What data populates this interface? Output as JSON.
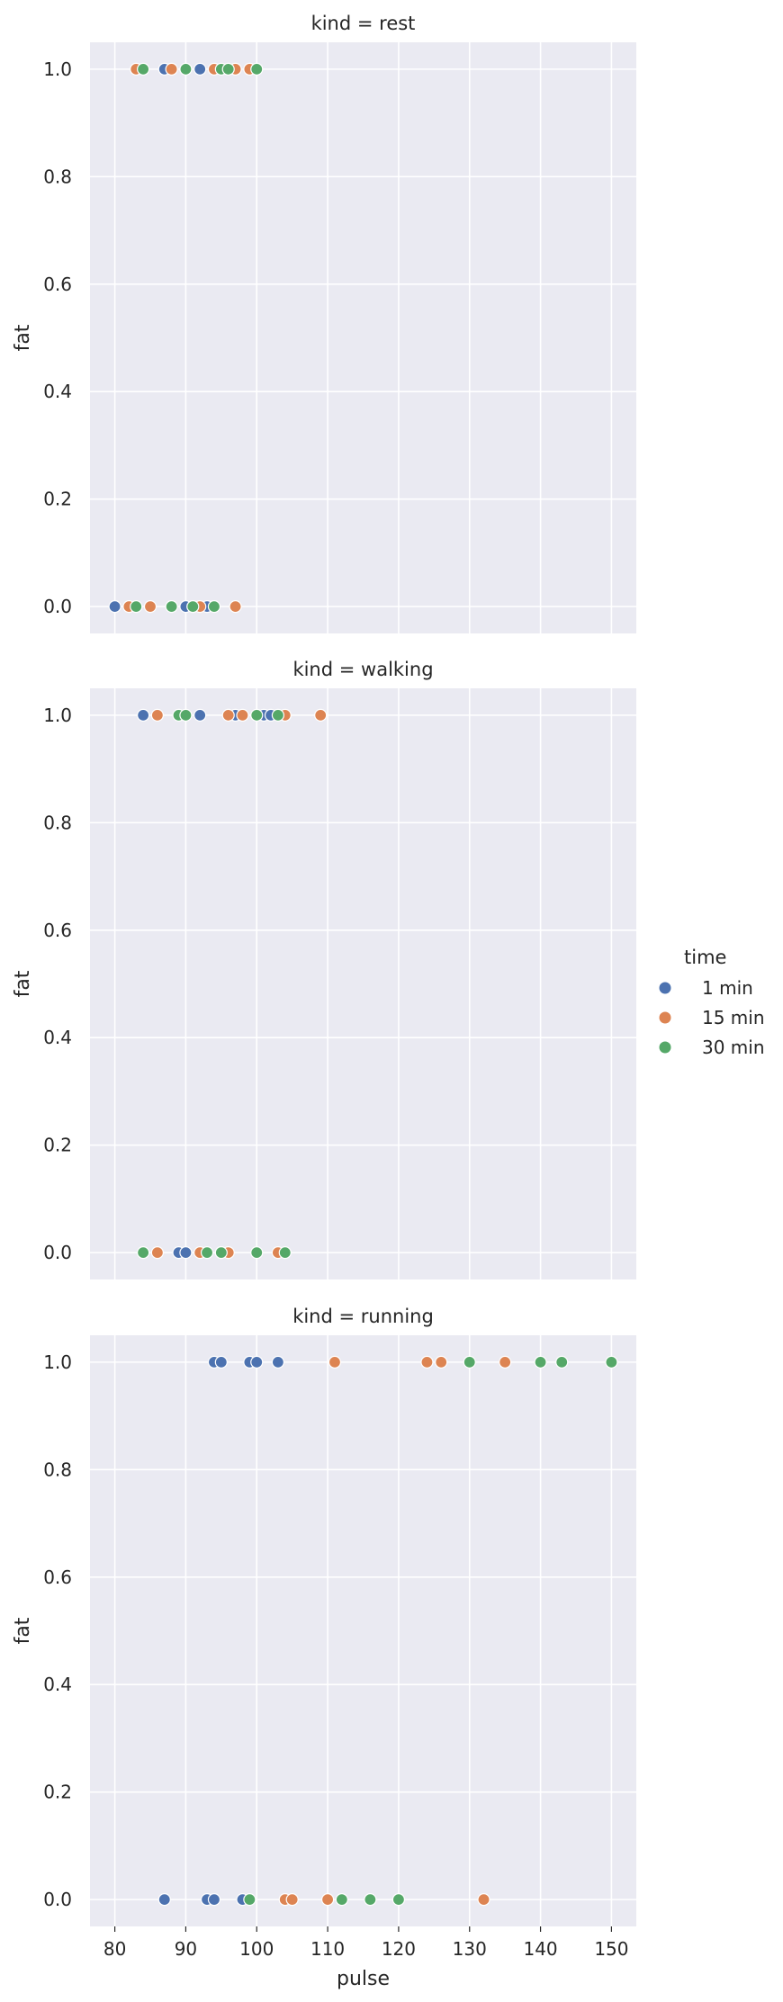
{
  "chart_data": {
    "type": "scatter",
    "x_label": "pulse",
    "y_label": "fat",
    "x_ticks": [
      80,
      90,
      100,
      110,
      120,
      130,
      140,
      150
    ],
    "y_ticks": [
      0.0,
      0.2,
      0.4,
      0.6,
      0.8,
      1.0
    ],
    "y_tick_labels": [
      "0.0",
      "0.2",
      "0.4",
      "0.6",
      "0.8",
      "1.0"
    ],
    "xlim": [
      76.5,
      153.5
    ],
    "ylim": [
      -0.05,
      1.05
    ],
    "legend": {
      "title": "time",
      "position": "right",
      "entries": [
        {
          "label": "1 min",
          "color": "#4c72b0"
        },
        {
          "label": "15 min",
          "color": "#dd8452"
        },
        {
          "label": "30 min",
          "color": "#55a868"
        }
      ]
    },
    "facets": [
      {
        "title": "kind = rest",
        "points": [
          {
            "pulse": 80,
            "fat": 0,
            "time": "1 min"
          },
          {
            "pulse": 90,
            "fat": 0,
            "time": "1 min"
          },
          {
            "pulse": 91,
            "fat": 0,
            "time": "1 min"
          },
          {
            "pulse": 93,
            "fat": 0,
            "time": "1 min"
          },
          {
            "pulse": 87,
            "fat": 1,
            "time": "1 min"
          },
          {
            "pulse": 92,
            "fat": 1,
            "time": "1 min"
          },
          {
            "pulse": 82,
            "fat": 0,
            "time": "15 min"
          },
          {
            "pulse": 85,
            "fat": 0,
            "time": "15 min"
          },
          {
            "pulse": 92,
            "fat": 0,
            "time": "15 min"
          },
          {
            "pulse": 97,
            "fat": 0,
            "time": "15 min"
          },
          {
            "pulse": 83,
            "fat": 1,
            "time": "15 min"
          },
          {
            "pulse": 88,
            "fat": 1,
            "time": "15 min"
          },
          {
            "pulse": 94,
            "fat": 1,
            "time": "15 min"
          },
          {
            "pulse": 97,
            "fat": 1,
            "time": "15 min"
          },
          {
            "pulse": 99,
            "fat": 1,
            "time": "15 min"
          },
          {
            "pulse": 83,
            "fat": 0,
            "time": "30 min"
          },
          {
            "pulse": 88,
            "fat": 0,
            "time": "30 min"
          },
          {
            "pulse": 91,
            "fat": 0,
            "time": "30 min"
          },
          {
            "pulse": 94,
            "fat": 0,
            "time": "30 min"
          },
          {
            "pulse": 84,
            "fat": 1,
            "time": "30 min"
          },
          {
            "pulse": 90,
            "fat": 1,
            "time": "30 min"
          },
          {
            "pulse": 95,
            "fat": 1,
            "time": "30 min"
          },
          {
            "pulse": 96,
            "fat": 1,
            "time": "30 min"
          },
          {
            "pulse": 100,
            "fat": 1,
            "time": "30 min"
          }
        ]
      },
      {
        "title": "kind = walking",
        "points": [
          {
            "pulse": 89,
            "fat": 0,
            "time": "1 min"
          },
          {
            "pulse": 90,
            "fat": 0,
            "time": "1 min"
          },
          {
            "pulse": 95,
            "fat": 0,
            "time": "1 min"
          },
          {
            "pulse": 84,
            "fat": 1,
            "time": "1 min"
          },
          {
            "pulse": 92,
            "fat": 1,
            "time": "1 min"
          },
          {
            "pulse": 97,
            "fat": 1,
            "time": "1 min"
          },
          {
            "pulse": 101,
            "fat": 1,
            "time": "1 min"
          },
          {
            "pulse": 102,
            "fat": 1,
            "time": "1 min"
          },
          {
            "pulse": 86,
            "fat": 0,
            "time": "15 min"
          },
          {
            "pulse": 92,
            "fat": 0,
            "time": "15 min"
          },
          {
            "pulse": 96,
            "fat": 0,
            "time": "15 min"
          },
          {
            "pulse": 103,
            "fat": 0,
            "time": "15 min"
          },
          {
            "pulse": 86,
            "fat": 1,
            "time": "15 min"
          },
          {
            "pulse": 96,
            "fat": 1,
            "time": "15 min"
          },
          {
            "pulse": 98,
            "fat": 1,
            "time": "15 min"
          },
          {
            "pulse": 104,
            "fat": 1,
            "time": "15 min"
          },
          {
            "pulse": 109,
            "fat": 1,
            "time": "15 min"
          },
          {
            "pulse": 84,
            "fat": 0,
            "time": "30 min"
          },
          {
            "pulse": 93,
            "fat": 0,
            "time": "30 min"
          },
          {
            "pulse": 95,
            "fat": 0,
            "time": "30 min"
          },
          {
            "pulse": 100,
            "fat": 0,
            "time": "30 min"
          },
          {
            "pulse": 104,
            "fat": 0,
            "time": "30 min"
          },
          {
            "pulse": 89,
            "fat": 1,
            "time": "30 min"
          },
          {
            "pulse": 90,
            "fat": 1,
            "time": "30 min"
          },
          {
            "pulse": 100,
            "fat": 1,
            "time": "30 min"
          },
          {
            "pulse": 103,
            "fat": 1,
            "time": "30 min"
          }
        ]
      },
      {
        "title": "kind = running",
        "points": [
          {
            "pulse": 87,
            "fat": 0,
            "time": "1 min"
          },
          {
            "pulse": 93,
            "fat": 0,
            "time": "1 min"
          },
          {
            "pulse": 94,
            "fat": 0,
            "time": "1 min"
          },
          {
            "pulse": 98,
            "fat": 0,
            "time": "1 min"
          },
          {
            "pulse": 94,
            "fat": 1,
            "time": "1 min"
          },
          {
            "pulse": 95,
            "fat": 1,
            "time": "1 min"
          },
          {
            "pulse": 99,
            "fat": 1,
            "time": "1 min"
          },
          {
            "pulse": 100,
            "fat": 1,
            "time": "1 min"
          },
          {
            "pulse": 103,
            "fat": 1,
            "time": "1 min"
          },
          {
            "pulse": 104,
            "fat": 0,
            "time": "15 min"
          },
          {
            "pulse": 105,
            "fat": 0,
            "time": "15 min"
          },
          {
            "pulse": 110,
            "fat": 0,
            "time": "15 min"
          },
          {
            "pulse": 132,
            "fat": 0,
            "time": "15 min"
          },
          {
            "pulse": 111,
            "fat": 1,
            "time": "15 min"
          },
          {
            "pulse": 124,
            "fat": 1,
            "time": "15 min"
          },
          {
            "pulse": 126,
            "fat": 1,
            "time": "15 min"
          },
          {
            "pulse": 135,
            "fat": 1,
            "time": "15 min"
          },
          {
            "pulse": 99,
            "fat": 0,
            "time": "30 min"
          },
          {
            "pulse": 112,
            "fat": 0,
            "time": "30 min"
          },
          {
            "pulse": 116,
            "fat": 0,
            "time": "30 min"
          },
          {
            "pulse": 120,
            "fat": 0,
            "time": "30 min"
          },
          {
            "pulse": 130,
            "fat": 1,
            "time": "30 min"
          },
          {
            "pulse": 140,
            "fat": 1,
            "time": "30 min"
          },
          {
            "pulse": 143,
            "fat": 1,
            "time": "30 min"
          },
          {
            "pulse": 150,
            "fat": 1,
            "time": "30 min"
          }
        ]
      }
    ]
  }
}
